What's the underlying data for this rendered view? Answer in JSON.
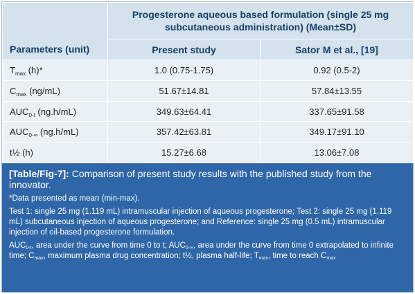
{
  "table": {
    "group_header_line1": "Progesterone aqueous based formulation (single 25 mg",
    "group_header_line2": "subcutaneous administration) (Mean±SD)",
    "col_param": "Parameters (unit)",
    "col_present": "Present study",
    "col_sator": "Sator M et al., [19]",
    "rows": [
      {
        "base": "T",
        "sub": "max",
        "suffix": " (h)*",
        "present": "1.0 (0.75-1.75)",
        "sator": "0.92 (0.5-2)"
      },
      {
        "base": "C",
        "sub": "max",
        "suffix": " (ng/mL)",
        "present": "51.67±14.81",
        "sator": "57.84±13.55"
      },
      {
        "base": "AUC",
        "sub": "0-t",
        "suffix": " (ng.h/mL)",
        "present": "349.63±64.41",
        "sator": "337.65±91.58"
      },
      {
        "base": "AUC",
        "sub": "0-∞",
        "suffix": " (ng.h/mL)",
        "present": "357.42±63.81",
        "sator": "349.17±91.10"
      },
      {
        "base": "t½ (h)",
        "sub": "",
        "suffix": "",
        "present": "15.27±6.68",
        "sator": "13.06±7.08"
      }
    ]
  },
  "caption": {
    "label": "[Table/Fig-7]:",
    "text": " Comparison of present study results with the published study from the innovator.",
    "note_data": "*Data presented as mean (min-max).",
    "note_tests": "Test 1: single 25 mg (1.119 mL) intramuscular injection of aqueous progesterone; Test 2: single 25 mg (1.119 mL) subcutaneous injection of aqueous progesterone; and Reference: single 25 mg (0.5 mL) intramuscular injection of oil-based progesterone formulation.",
    "abbr": {
      "auc": "AUC",
      "sub_0t": "0-t",
      "text_0t": ", area under the curve from time 0 to t; AUC",
      "sub_0inf": "0-∞",
      "text_0inf": ", area under the curve from time 0 extrapolated to infinite time; C",
      "sub_max1": "max",
      "text_cmax": ", maximum plasma drug concentration; t½, plasma half-life; T",
      "sub_max2": "max",
      "text_tmax": ", time to reach C",
      "sub_max3": "max"
    }
  }
}
